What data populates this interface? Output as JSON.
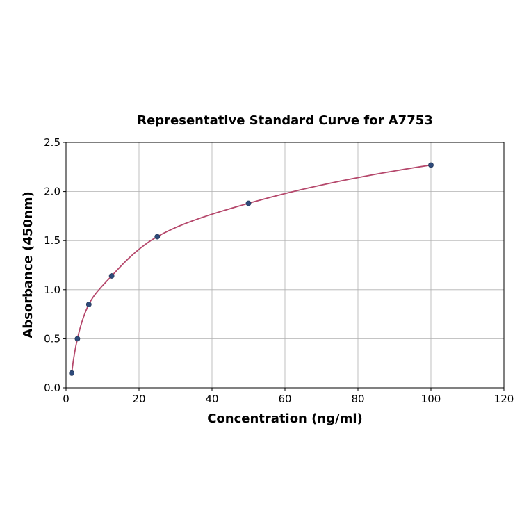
{
  "chart_data": {
    "type": "line",
    "title": "Representative Standard Curve for A7753",
    "xlabel": "Concentration (ng/ml)",
    "ylabel": "Absorbance (450nm)",
    "xlim": [
      0,
      120
    ],
    "ylim": [
      0,
      2.5
    ],
    "xticks": [
      0,
      20,
      40,
      60,
      80,
      100,
      120
    ],
    "yticks": [
      0.0,
      0.5,
      1.0,
      1.5,
      2.0,
      2.5
    ],
    "xtick_labels": [
      "0",
      "20",
      "40",
      "60",
      "80",
      "100",
      "120"
    ],
    "ytick_labels": [
      "0.0",
      "0.5",
      "1.0",
      "1.5",
      "2.0",
      "2.5"
    ],
    "grid": true,
    "series": [
      {
        "name": "Standard points",
        "kind": "scatter",
        "x": [
          1.5625,
          3.125,
          6.25,
          12.5,
          25,
          50,
          100
        ],
        "y": [
          0.15,
          0.5,
          0.85,
          1.14,
          1.54,
          1.88,
          2.27
        ],
        "color": "#2e4a7a"
      },
      {
        "name": "Fitted curve",
        "kind": "line",
        "color": "#b5476b"
      }
    ]
  }
}
